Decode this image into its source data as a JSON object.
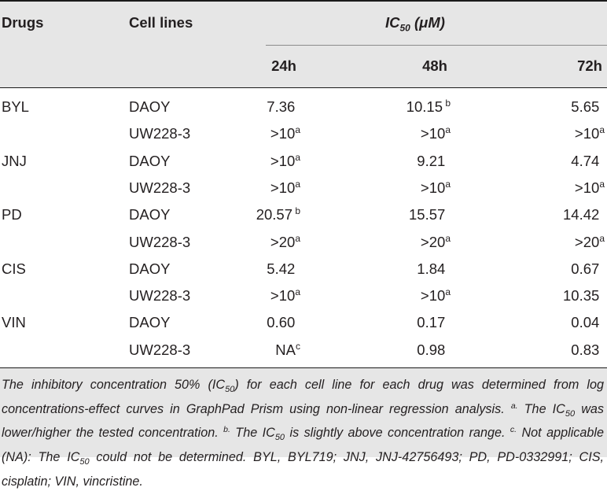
{
  "headers": {
    "drugs": "Drugs",
    "cell_lines": "Cell lines",
    "ic50_prefix": "IC",
    "ic50_sub": "50",
    "ic50_suffix": " (μM)",
    "time_24": "24h",
    "time_48": "48h",
    "time_72": "72h"
  },
  "rows": [
    {
      "drug": "BYL",
      "line": "DAOY",
      "v24": "7.36",
      "s24": "",
      "v48": "10.15",
      "s48": " b",
      "v72": "5.65",
      "s72": ""
    },
    {
      "drug": "",
      "line": "UW228-3",
      "v24": ">10",
      "s24": "a",
      "v48": ">10",
      "s48": "a",
      "v72": ">10",
      "s72": "a"
    },
    {
      "drug": "JNJ",
      "line": "DAOY",
      "v24": ">10",
      "s24": "a",
      "v48": "9.21",
      "s48": "",
      "v72": "4.74",
      "s72": ""
    },
    {
      "drug": "",
      "line": "UW228-3",
      "v24": ">10",
      "s24": "a",
      "v48": ">10",
      "s48": "a",
      "v72": ">10",
      "s72": "a"
    },
    {
      "drug": "PD",
      "line": "DAOY",
      "v24": "20.57",
      "s24": " b",
      "v48": "15.57",
      "s48": "",
      "v72": "14.42",
      "s72": ""
    },
    {
      "drug": "",
      "line": "UW228-3",
      "v24": ">20",
      "s24": "a",
      "v48": ">20",
      "s48": "a",
      "v72": ">20",
      "s72": "a"
    },
    {
      "drug": "CIS",
      "line": "DAOY",
      "v24": "5.42",
      "s24": "",
      "v48": "1.84",
      "s48": "",
      "v72": "0.67",
      "s72": ""
    },
    {
      "drug": "",
      "line": "UW228-3",
      "v24": ">10",
      "s24": "a",
      "v48": ">10",
      "s48": "a",
      "v72": "10.35",
      "s72": ""
    },
    {
      "drug": "VIN",
      "line": "DAOY",
      "v24": "0.60",
      "s24": "",
      "v48": "0.17",
      "s48": "",
      "v72": "0.04",
      "s72": ""
    },
    {
      "drug": "",
      "line": "UW228-3",
      "v24": "NA",
      "s24": "c",
      "v48": "0.98",
      "s48": "",
      "v72": "0.83",
      "s72": ""
    }
  ],
  "footnote": {
    "p1": "The inhibitory concentration 50% (IC",
    "sub1": "50",
    "p2": ") for each cell line for each drug was determined from log concentrations-effect curves in GraphPad Prism using non-linear regression analysis. ",
    "mark_a": "a.",
    "p3": " The IC",
    "sub2": "50",
    "p4": " was lower/higher the tested concentration. ",
    "mark_b": "b.",
    "p5": " The IC",
    "sub3": "50",
    "p6": " is slightly above concentration range. ",
    "mark_c": "c.",
    "p7": " Not applicable (NA): The IC",
    "sub4": "50",
    "p8": " could not be determined. BYL, BYL719; JNJ, JNJ-42756493; PD, PD-0332991; CIS, cisplatin; VIN, vincristine."
  }
}
